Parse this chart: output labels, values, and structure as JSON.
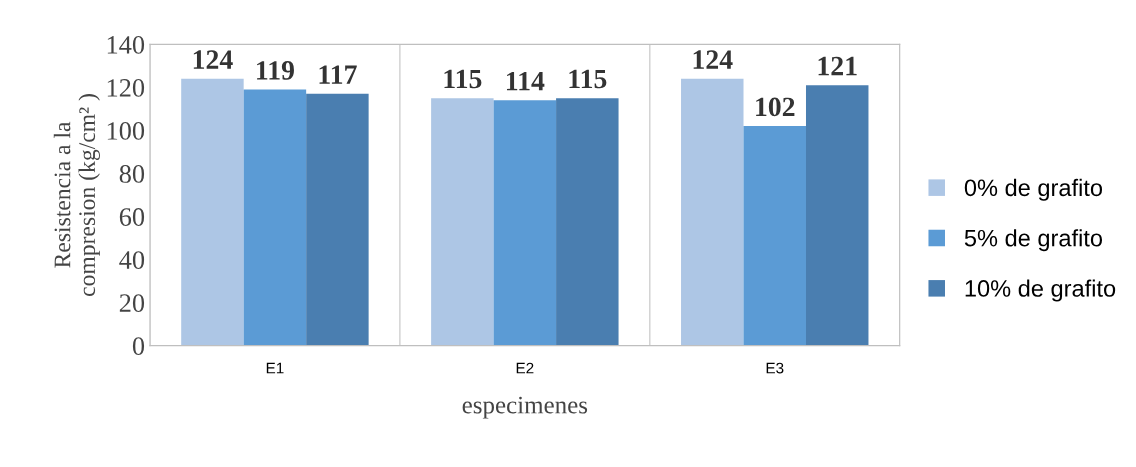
{
  "chart_data": {
    "type": "bar",
    "xlabel": "especimenes",
    "ylabel": "Resistencia a la\ncompresion (kg/cm² )",
    "categories": [
      "E1",
      "E2",
      "E3"
    ],
    "series": [
      {
        "name": "0% de grafito",
        "color": "#adc6e5",
        "values": [
          124,
          115,
          124
        ]
      },
      {
        "name": "5% de grafito",
        "color": "#5b9bd5",
        "values": [
          119,
          114,
          102
        ]
      },
      {
        "name": "10% de grafito",
        "color": "#4a7eb0",
        "values": [
          117,
          115,
          121
        ]
      }
    ],
    "ylim": [
      0,
      140
    ],
    "yticks": [
      0,
      20,
      40,
      60,
      80,
      100,
      120,
      140
    ],
    "grid": "x",
    "legend": "right",
    "data_labels": true
  }
}
